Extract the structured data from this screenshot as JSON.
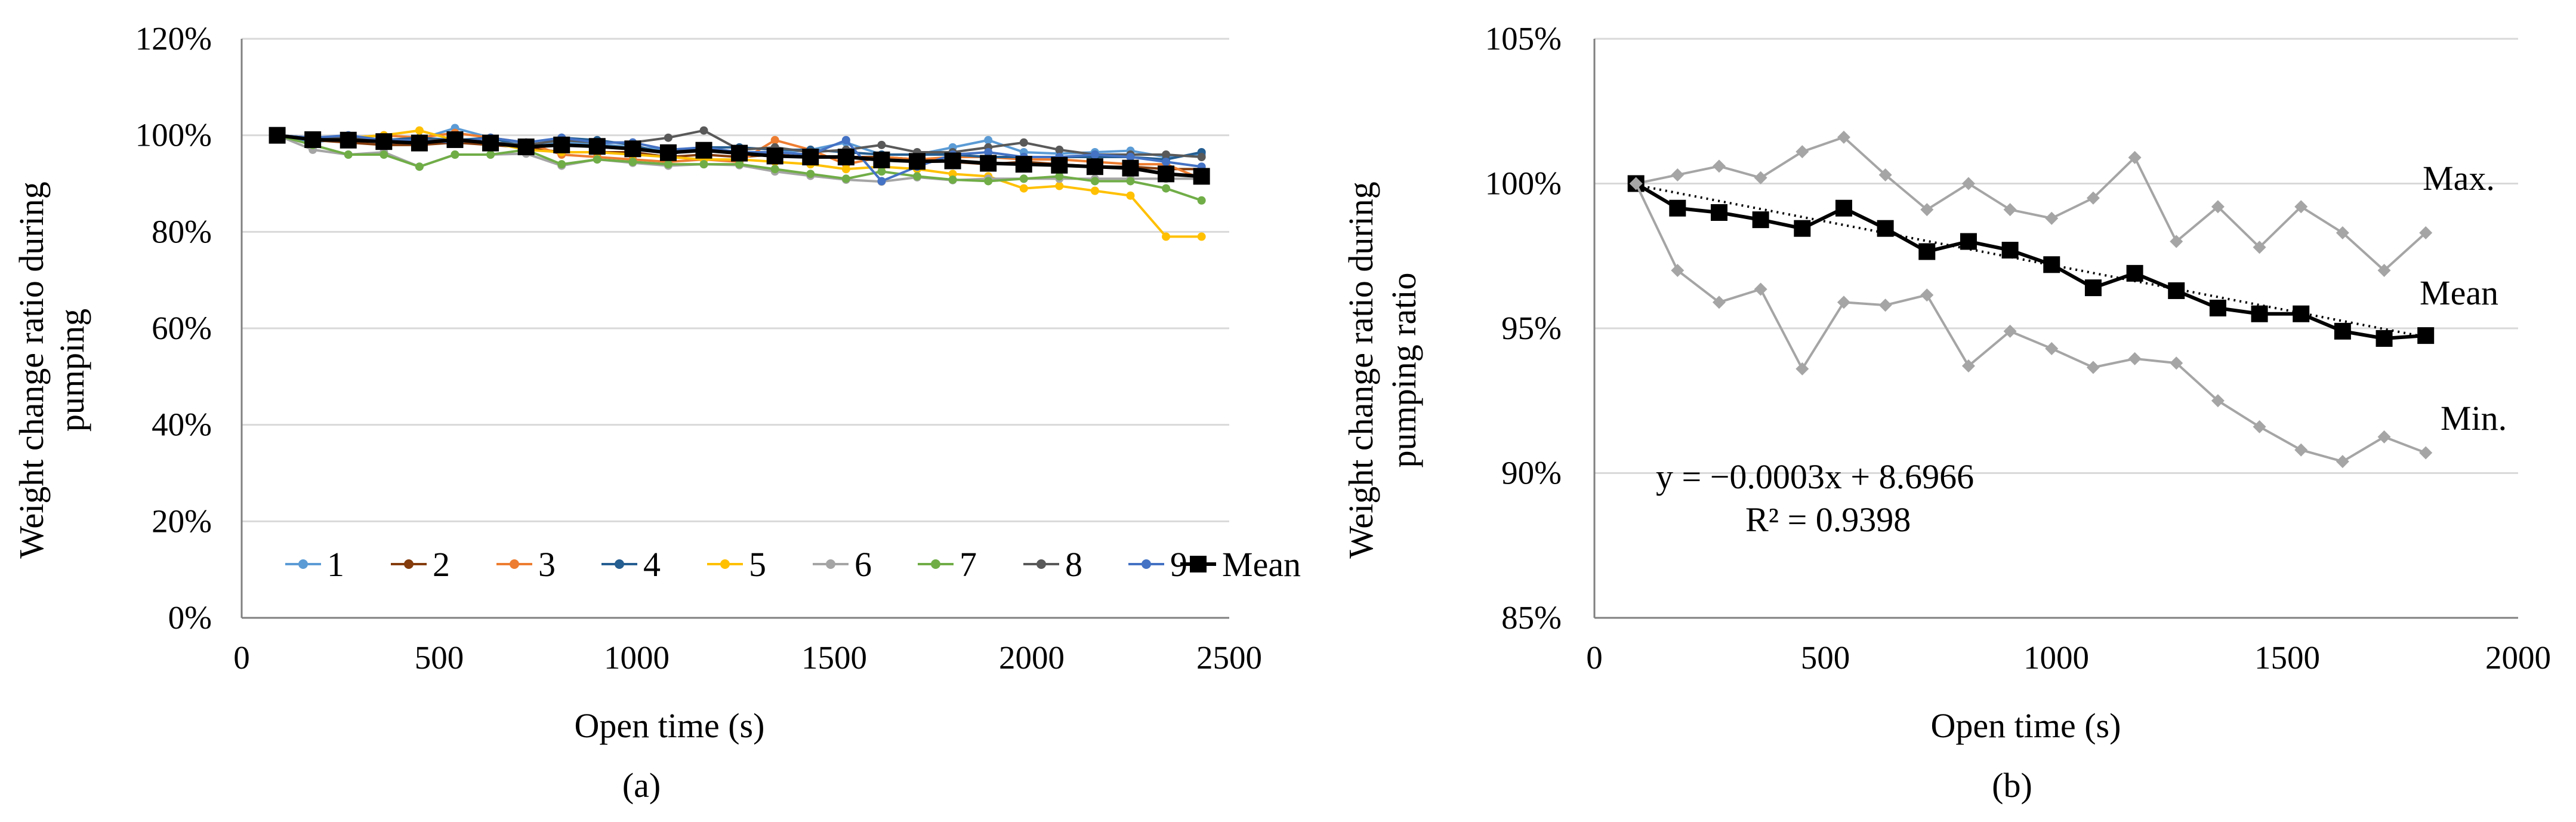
{
  "chart_data": [
    {
      "type": "line",
      "panel_label": "(a)",
      "xlabel": "Open time (s)",
      "ylabel_lines": [
        "Weight change ratio during",
        "pumping"
      ],
      "xlim": [
        0,
        2500
      ],
      "ylim": [
        0,
        120
      ],
      "xticks": [
        "0",
        "500",
        "1000",
        "1500",
        "2000",
        "2500"
      ],
      "yticks": [
        "0%",
        "20%",
        "40%",
        "60%",
        "80%",
        "100%",
        "120%"
      ],
      "x": [
        90,
        180,
        270,
        360,
        450,
        540,
        630,
        720,
        810,
        900,
        990,
        1080,
        1170,
        1260,
        1350,
        1440,
        1530,
        1620,
        1710,
        1800,
        1890,
        1980,
        2070,
        2160,
        2250,
        2340,
        2430
      ],
      "series": [
        {
          "name": "1",
          "color": "#5b9bd5",
          "values": [
            100,
            98.5,
            99.5,
            99,
            99.2,
            101.5,
            99.5,
            98,
            98.5,
            98.2,
            97.5,
            97,
            96.8,
            96.5,
            96.3,
            97,
            98.5,
            96,
            96,
            97.5,
            99,
            96.5,
            96.2,
            96.5,
            96.8,
            95.5,
            96
          ]
        },
        {
          "name": "2",
          "color": "#843c0c",
          "values": [
            100,
            99,
            98.5,
            98,
            98,
            98.5,
            98,
            97.5,
            96.5,
            96.5,
            96.5,
            95.5,
            96,
            95.5,
            96,
            95.5,
            95.5,
            95.5,
            95,
            94.5,
            94,
            94.5,
            94,
            93.5,
            93.5,
            93,
            93
          ]
        },
        {
          "name": "3",
          "color": "#ed7d31",
          "values": [
            100,
            99.5,
            99.5,
            100,
            99.5,
            100.5,
            99.5,
            98.5,
            96,
            95.5,
            95,
            94.5,
            95,
            94.5,
            99,
            97,
            94,
            95.5,
            95,
            95.5,
            95.5,
            95,
            95,
            94.5,
            94,
            94,
            91
          ]
        },
        {
          "name": "4",
          "color": "#255e91",
          "values": [
            100,
            99.5,
            99.5,
            99,
            99.5,
            99,
            99.5,
            97.5,
            99.5,
            99,
            98,
            96,
            97.5,
            97.5,
            97,
            97,
            96.5,
            96,
            96,
            96,
            95.5,
            95.5,
            95.5,
            95.5,
            95.5,
            95,
            96.5
          ]
        },
        {
          "name": "5",
          "color": "#ffc000",
          "values": [
            100,
            99,
            99.5,
            100,
            101,
            99,
            98.5,
            97,
            96.5,
            96.5,
            96,
            95.5,
            95,
            95,
            94.5,
            94,
            93,
            93.5,
            93,
            92,
            91.5,
            89,
            89.5,
            88.5,
            87.5,
            79,
            79
          ]
        },
        {
          "name": "6",
          "color": "#a5a5a5",
          "values": [
            100,
            97,
            96,
            96.5,
            93.5,
            96,
            96,
            96.2,
            93.7,
            95,
            94.3,
            93.7,
            94,
            93.8,
            92.5,
            91.6,
            90.8,
            90.4,
            91.3,
            90.7,
            91,
            91,
            91,
            91,
            91,
            91,
            91
          ]
        },
        {
          "name": "7",
          "color": "#70ad47",
          "values": [
            100,
            98,
            96,
            96,
            93.5,
            96,
            96,
            97,
            94,
            95,
            94.5,
            94,
            94,
            94,
            93,
            92,
            91,
            92.5,
            91.5,
            90.8,
            90.5,
            91,
            91.5,
            90.5,
            90.5,
            89,
            86.5
          ]
        },
        {
          "name": "8",
          "color": "#595959",
          "values": [
            100,
            99.5,
            99.5,
            99,
            99,
            99,
            98.5,
            98,
            99,
            98.5,
            98.5,
            99.5,
            101,
            97,
            97.5,
            96.5,
            97,
            98,
            96.5,
            96.5,
            97.5,
            98.5,
            97,
            96,
            96,
            96,
            95.5
          ]
        },
        {
          "name": "9",
          "color": "#4472c4",
          "values": [
            100,
            99.5,
            100,
            99,
            99,
            98.5,
            99.5,
            98.5,
            99.5,
            98.5,
            98.5,
            97,
            97.5,
            96.5,
            96.5,
            96,
            99,
            90.5,
            93.5,
            96,
            96.5,
            95.5,
            95.5,
            96,
            95.5,
            94.5,
            93.5
          ]
        },
        {
          "name": "Mean",
          "color": "#000000",
          "values": [
            100,
            99.1,
            99,
            98.7,
            98.4,
            99.1,
            98.4,
            97.6,
            98,
            97.7,
            97.2,
            96.4,
            96.9,
            96.3,
            95.7,
            95.5,
            95.5,
            94.9,
            94.6,
            94.7,
            94.2,
            94,
            93.8,
            93.5,
            93.2,
            92,
            91.5
          ]
        }
      ],
      "legend": [
        "1",
        "2",
        "3",
        "4",
        "5",
        "6",
        "7",
        "8",
        "9",
        "Mean"
      ],
      "legend_placement": "bottom-inside"
    },
    {
      "type": "line",
      "panel_label": "(b)",
      "xlabel": "Open time (s)",
      "ylabel_lines": [
        "Weight change ratio during",
        "pumping  ratio"
      ],
      "xlim": [
        0,
        2000
      ],
      "ylim": [
        85,
        105
      ],
      "xticks": [
        "0",
        "500",
        "1000",
        "1500",
        "2000"
      ],
      "yticks": [
        "85%",
        "90%",
        "95%",
        "100%",
        "105%"
      ],
      "x": [
        90,
        180,
        270,
        360,
        450,
        540,
        630,
        720,
        810,
        900,
        990,
        1080,
        1170,
        1260,
        1350,
        1440,
        1530,
        1620,
        1710,
        1800
      ],
      "series": [
        {
          "name": "Max.",
          "color": "#a5a5a5",
          "values": [
            100,
            100.3,
            100.6,
            100.2,
            101.1,
            101.6,
            100.3,
            99.1,
            100,
            99.1,
            98.8,
            99.5,
            100.9,
            98,
            99.2,
            97.8,
            99.2,
            98.3,
            97,
            98.3
          ]
        },
        {
          "name": "Mean",
          "color": "#000000",
          "values": [
            100,
            99.15,
            99,
            98.75,
            98.45,
            99.15,
            98.45,
            97.65,
            98,
            97.7,
            97.2,
            96.4,
            96.9,
            96.3,
            95.7,
            95.5,
            95.5,
            94.9,
            94.65,
            94.75
          ]
        },
        {
          "name": "Min.",
          "color": "#a5a5a5",
          "values": [
            100,
            97,
            95.9,
            96.35,
            93.6,
            95.9,
            95.8,
            96.15,
            93.7,
            94.9,
            94.3,
            93.65,
            93.95,
            93.8,
            92.5,
            91.6,
            90.8,
            90.4,
            91.25,
            90.7
          ]
        }
      ],
      "trendline": {
        "x": [
          90,
          1800
        ],
        "y": [
          99.95,
          94.7
        ],
        "style": "dotted"
      },
      "annotations": {
        "max_label": "Max.",
        "mean_label": "Mean",
        "min_label": "Min.",
        "equation": "y = −0.0003x + 8.6966",
        "r_squared": "R² = 0.9398"
      }
    }
  ]
}
